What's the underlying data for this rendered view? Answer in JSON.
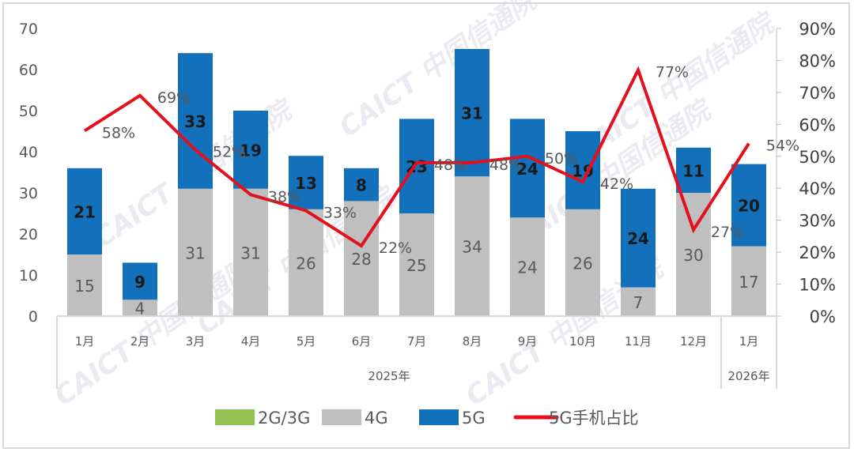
{
  "chart_data": {
    "type": "bar",
    "stacked": true,
    "categories": [
      "1月",
      "2月",
      "3月",
      "4月",
      "5月",
      "6月",
      "7月",
      "8月",
      "9月",
      "10月",
      "11月",
      "12月",
      "1月"
    ],
    "groups": [
      {
        "label": "2025年",
        "span": 12
      },
      {
        "label": "2026年",
        "span": 1
      }
    ],
    "series": [
      {
        "name": "2G/3G",
        "type": "bar",
        "color": "#92c353",
        "values": [
          0,
          0,
          0,
          0,
          0,
          0,
          0,
          0,
          0,
          0,
          0,
          0,
          0
        ]
      },
      {
        "name": "4G",
        "type": "bar",
        "color": "#bfbfbf",
        "values": [
          15,
          4,
          31,
          31,
          26,
          28,
          25,
          34,
          24,
          26,
          7,
          30,
          17
        ]
      },
      {
        "name": "5G",
        "type": "bar",
        "color": "#1370bb",
        "values": [
          21,
          9,
          33,
          19,
          13,
          8,
          23,
          31,
          24,
          19,
          24,
          11,
          20
        ]
      },
      {
        "name": "5G手机占比",
        "type": "line",
        "axis": "right",
        "color": "#e3111f",
        "values": [
          58,
          69,
          52,
          38,
          33,
          22,
          48,
          48,
          50,
          42,
          77,
          27,
          54
        ]
      }
    ],
    "ylim": [
      0,
      70
    ],
    "yticks": [
      "0",
      "10",
      "20",
      "30",
      "40",
      "50",
      "60",
      "70"
    ],
    "y2lim": [
      0,
      90
    ],
    "y2ticks": [
      "0%",
      "10%",
      "20%",
      "30%",
      "40%",
      "50%",
      "60%",
      "70%",
      "80%",
      "90%"
    ],
    "grid": false,
    "legend": "bottom"
  },
  "watermark": "CAICT 中国信通院"
}
